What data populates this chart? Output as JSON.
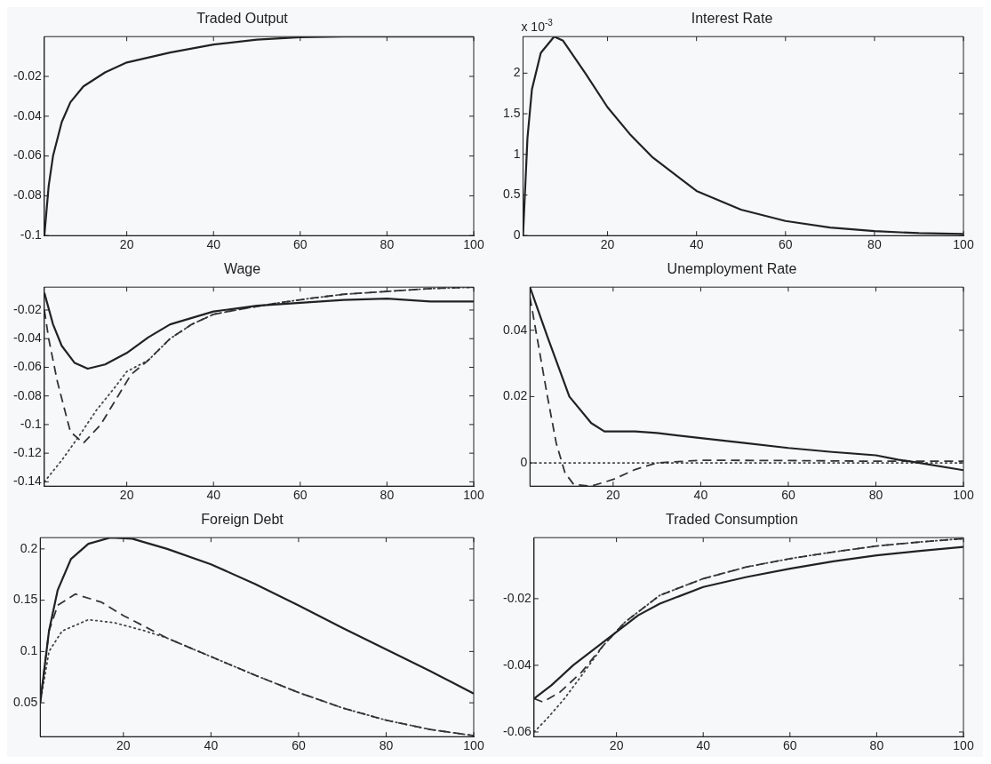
{
  "chart_data": [
    {
      "type": "line",
      "title": "Traded Output",
      "xlim": [
        1,
        100
      ],
      "xticks": [
        20,
        40,
        60,
        80,
        100
      ],
      "ylim": [
        -0.1,
        0
      ],
      "yticks": [
        -0.1,
        -0.08,
        -0.06,
        -0.04,
        -0.02
      ],
      "series": [
        {
          "color": "#222222",
          "line_style": "solid",
          "x": [
            1,
            2,
            3,
            5,
            7,
            10,
            15,
            20,
            30,
            40,
            50,
            60,
            70,
            80,
            90,
            100
          ],
          "values": [
            -0.1,
            -0.075,
            -0.06,
            -0.043,
            -0.033,
            -0.025,
            -0.018,
            -0.013,
            -0.008,
            -0.004,
            -0.0015,
            -0.0003,
            0,
            0,
            0,
            0
          ]
        }
      ]
    },
    {
      "type": "line",
      "title": "Interest Rate",
      "annotations": [
        "x 10$^{-3}$"
      ],
      "xlim": [
        1,
        100
      ],
      "xticks": [
        20,
        40,
        60,
        80,
        100
      ],
      "ylim": [
        0,
        2.45
      ],
      "yticks": [
        0,
        0.5,
        1,
        1.5,
        2
      ],
      "series": [
        {
          "color": "#222222",
          "line_style": "solid",
          "x": [
            1,
            2,
            3,
            5,
            8,
            10,
            15,
            20,
            25,
            30,
            40,
            50,
            60,
            70,
            80,
            90,
            100
          ],
          "values": [
            0,
            1.2,
            1.8,
            2.25,
            2.45,
            2.4,
            2.0,
            1.58,
            1.25,
            0.97,
            0.55,
            0.32,
            0.18,
            0.1,
            0.055,
            0.03,
            0.02
          ]
        }
      ]
    },
    {
      "type": "line",
      "title": "Wage",
      "xlim": [
        1,
        100
      ],
      "xticks": [
        20,
        40,
        60,
        80,
        100
      ],
      "ylim": [
        -0.143,
        -0.004
      ],
      "yticks": [
        -0.14,
        -0.12,
        -0.1,
        -0.08,
        -0.06,
        -0.04,
        -0.02
      ],
      "series": [
        {
          "color": "#222222",
          "line_style": "solid",
          "x": [
            1,
            3,
            5,
            8,
            11,
            15,
            20,
            25,
            30,
            40,
            50,
            60,
            70,
            80,
            90,
            100
          ],
          "values": [
            -0.008,
            -0.03,
            -0.045,
            -0.057,
            -0.061,
            -0.058,
            -0.05,
            -0.039,
            -0.03,
            -0.021,
            -0.017,
            -0.015,
            -0.013,
            -0.012,
            -0.014,
            -0.014
          ]
        },
        {
          "color": "#333333",
          "line_style": "dashed",
          "x": [
            1,
            2,
            4,
            7,
            10,
            14,
            18,
            21,
            25,
            30,
            35,
            40,
            47,
            55,
            62,
            70,
            80,
            90,
            100
          ],
          "values": [
            -0.02,
            -0.04,
            -0.07,
            -0.105,
            -0.113,
            -0.1,
            -0.08,
            -0.065,
            -0.055,
            -0.04,
            -0.03,
            -0.023,
            -0.019,
            -0.015,
            -0.012,
            -0.009,
            -0.007,
            -0.005,
            -0.004
          ]
        },
        {
          "color": "#444444",
          "line_style": "dotted",
          "x": [
            1,
            5,
            9,
            13,
            17,
            20,
            25,
            30,
            35,
            40,
            47,
            55,
            62,
            70,
            80,
            90,
            100
          ],
          "values": [
            -0.14,
            -0.125,
            -0.108,
            -0.09,
            -0.075,
            -0.063,
            -0.055,
            -0.04,
            -0.03,
            -0.023,
            -0.019,
            -0.015,
            -0.012,
            -0.009,
            -0.007,
            -0.005,
            -0.004
          ]
        }
      ]
    },
    {
      "type": "line",
      "title": "Unemployment Rate",
      "xlim": [
        1,
        100
      ],
      "xticks": [
        20,
        40,
        60,
        80,
        100
      ],
      "ylim": [
        -0.007,
        0.053
      ],
      "yticks": [
        0,
        0.02,
        0.04
      ],
      "series": [
        {
          "color": "#222222",
          "line_style": "solid",
          "x": [
            1,
            5,
            10,
            15,
            18,
            25,
            30,
            40,
            50,
            60,
            70,
            80,
            85,
            90,
            100
          ],
          "values": [
            0.053,
            0.038,
            0.02,
            0.012,
            0.0095,
            0.0095,
            0.009,
            0.0075,
            0.006,
            0.0045,
            0.0033,
            0.0023,
            0.001,
            0,
            -0.0022
          ]
        },
        {
          "color": "#333333",
          "line_style": "dashed",
          "x": [
            1,
            3,
            5,
            7,
            9,
            11,
            15,
            20,
            25,
            30,
            40,
            60,
            80,
            100
          ],
          "values": [
            0.05,
            0.035,
            0.02,
            0.006,
            -0.003,
            -0.0065,
            -0.007,
            -0.005,
            -0.002,
            0,
            0.0008,
            0.0007,
            0.0005,
            0.0005
          ]
        },
        {
          "color": "#444444",
          "line_style": "dotted",
          "x": [
            1,
            100
          ],
          "values": [
            0,
            0
          ]
        }
      ]
    },
    {
      "type": "line",
      "title": "Foreign Debt",
      "xlim": [
        1,
        100
      ],
      "xticks": [
        20,
        40,
        60,
        80,
        100
      ],
      "ylim": [
        0.017,
        0.211
      ],
      "yticks": [
        0.05,
        0.1,
        0.15,
        0.2
      ],
      "series": [
        {
          "color": "#222222",
          "line_style": "solid",
          "x": [
            1,
            3,
            5,
            8,
            12,
            17,
            22,
            30,
            40,
            50,
            60,
            70,
            80,
            90,
            100
          ],
          "values": [
            0.05,
            0.12,
            0.16,
            0.19,
            0.205,
            0.211,
            0.21,
            0.2,
            0.185,
            0.166,
            0.145,
            0.123,
            0.102,
            0.081,
            0.059
          ]
        },
        {
          "color": "#333333",
          "line_style": "dashed",
          "x": [
            1,
            3,
            5,
            9,
            15,
            20,
            30,
            40,
            50,
            60,
            70,
            80,
            90,
            100
          ],
          "values": [
            0.05,
            0.12,
            0.145,
            0.156,
            0.148,
            0.135,
            0.113,
            0.095,
            0.077,
            0.06,
            0.045,
            0.033,
            0.024,
            0.018
          ]
        },
        {
          "color": "#444444",
          "line_style": "dotted",
          "x": [
            1,
            3,
            6,
            12,
            18,
            25,
            30,
            40,
            50,
            60,
            70,
            80,
            90,
            100
          ],
          "values": [
            0.05,
            0.1,
            0.12,
            0.131,
            0.128,
            0.12,
            0.113,
            0.095,
            0.077,
            0.06,
            0.045,
            0.033,
            0.024,
            0.018
          ]
        }
      ]
    },
    {
      "type": "line",
      "title": "Traded Consumption",
      "xlim": [
        1,
        100
      ],
      "xticks": [
        20,
        40,
        60,
        80,
        100
      ],
      "ylim": [
        -0.0614,
        -0.0017
      ],
      "yticks": [
        -0.06,
        -0.04,
        -0.02
      ],
      "series": [
        {
          "color": "#222222",
          "line_style": "solid",
          "x": [
            1,
            5,
            10,
            15,
            20,
            25,
            30,
            40,
            50,
            60,
            70,
            80,
            90,
            100
          ],
          "values": [
            -0.05,
            -0.046,
            -0.04,
            -0.035,
            -0.03,
            -0.025,
            -0.0215,
            -0.0165,
            -0.0135,
            -0.011,
            -0.0088,
            -0.007,
            -0.0057,
            -0.0045
          ]
        },
        {
          "color": "#333333",
          "line_style": "dashed",
          "x": [
            1,
            3,
            7,
            12,
            17,
            22,
            27,
            30,
            40,
            50,
            60,
            70,
            80,
            90,
            100
          ],
          "values": [
            -0.05,
            -0.051,
            -0.048,
            -0.042,
            -0.034,
            -0.027,
            -0.022,
            -0.019,
            -0.014,
            -0.0105,
            -0.008,
            -0.006,
            -0.0042,
            -0.003,
            -0.002
          ]
        },
        {
          "color": "#444444",
          "line_style": "dotted",
          "x": [
            1,
            4,
            8,
            12,
            17,
            22,
            27,
            30,
            40,
            50,
            60,
            70,
            80,
            90,
            100
          ],
          "values": [
            -0.06,
            -0.056,
            -0.05,
            -0.043,
            -0.034,
            -0.027,
            -0.022,
            -0.019,
            -0.014,
            -0.0105,
            -0.008,
            -0.006,
            -0.0042,
            -0.003,
            -0.002
          ]
        }
      ]
    }
  ]
}
